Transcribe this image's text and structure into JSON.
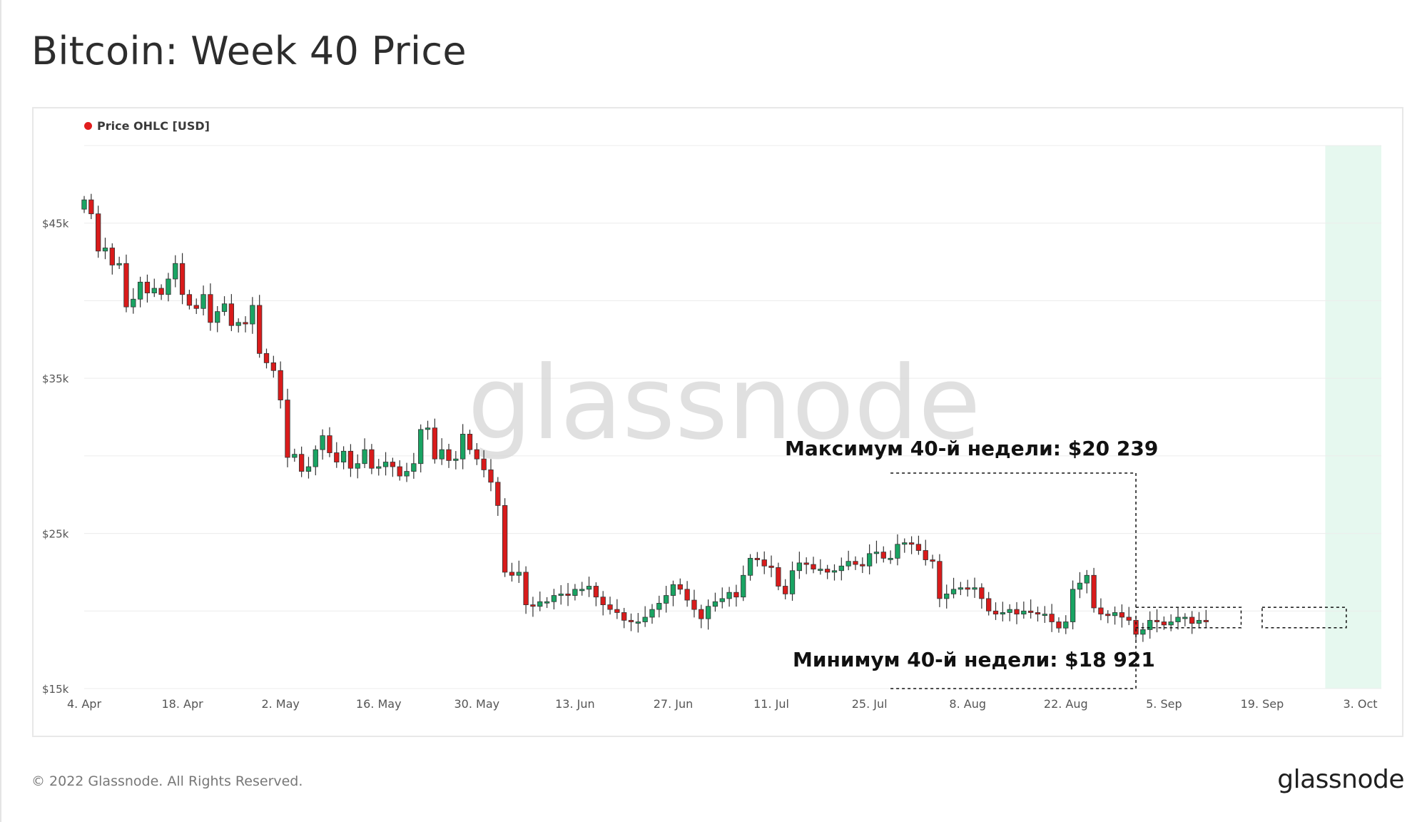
{
  "page": {
    "title": "Bitcoin: Week 40 Price",
    "copyright": "© 2022 Glassnode. All Rights Reserved.",
    "logo": "glassnode",
    "watermark": "glassnode"
  },
  "chart_data": {
    "type": "candlestick",
    "title": "Bitcoin: Week 40 Price",
    "legend": [
      {
        "name": "Price OHLC [USD]",
        "color": "#e11d1d"
      }
    ],
    "legend_position": "top-left",
    "grid": true,
    "xlabel": "",
    "ylabel": "",
    "ylim": [
      15000,
      50000
    ],
    "xlim": [
      "2022-04-04",
      "2022-10-06"
    ],
    "y_ticks": [
      {
        "value": 15000,
        "label": "$15k"
      },
      {
        "value": 25000,
        "label": "$25k"
      },
      {
        "value": 35000,
        "label": "$35k"
      },
      {
        "value": 45000,
        "label": "$45k"
      }
    ],
    "x_ticks": [
      {
        "date": "2022-04-04",
        "label": "4. Apr"
      },
      {
        "date": "2022-04-18",
        "label": "18. Apr"
      },
      {
        "date": "2022-05-02",
        "label": "2. May"
      },
      {
        "date": "2022-05-16",
        "label": "16. May"
      },
      {
        "date": "2022-05-30",
        "label": "30. May"
      },
      {
        "date": "2022-06-13",
        "label": "13. Jun"
      },
      {
        "date": "2022-06-27",
        "label": "27. Jun"
      },
      {
        "date": "2022-07-11",
        "label": "11. Jul"
      },
      {
        "date": "2022-07-25",
        "label": "25. Jul"
      },
      {
        "date": "2022-08-08",
        "label": "8. Aug"
      },
      {
        "date": "2022-08-22",
        "label": "22. Aug"
      },
      {
        "date": "2022-09-05",
        "label": "5. Sep"
      },
      {
        "date": "2022-09-19",
        "label": "19. Sep"
      },
      {
        "date": "2022-10-03",
        "label": "3. Oct"
      }
    ],
    "colors": {
      "up": "#19a463",
      "down": "#d91b1b",
      "highlight": "#e6f8ef",
      "grid": "#ececec"
    },
    "highlight_range": [
      "2022-09-28",
      "2022-10-06"
    ],
    "annotations": [
      {
        "text": "Максимум 40-й недели: $20 239",
        "value": 20239,
        "from": "2022-07-28",
        "to": "2022-09-01"
      },
      {
        "text": "Минимум 40-й недели: $18 921",
        "value": 18921,
        "from": "2022-07-28",
        "to": "2022-09-01"
      }
    ],
    "range_box_1": {
      "from": "2022-09-01",
      "to": "2022-09-16",
      "high": 20239,
      "low": 18921
    },
    "range_box_2": {
      "from": "2022-09-19",
      "to": "2022-10-01",
      "high": 20239,
      "low": 18921
    },
    "series": [
      {
        "name": "Price OHLC [USD]",
        "start_date": "2022-04-04",
        "close": [
          46500,
          45600,
          43200,
          43400,
          42300,
          42400,
          39600,
          40100,
          41200,
          40500,
          40800,
          40400,
          41400,
          42400,
          40400,
          39700,
          39500,
          40400,
          38600,
          39300,
          39800,
          38400,
          38600,
          38500,
          39700,
          36600,
          36000,
          35500,
          33600,
          29900,
          30100,
          29000,
          29300,
          30400,
          31300,
          30200,
          29600,
          30300,
          29200,
          29500,
          30400,
          29200,
          29300,
          29600,
          29300,
          28700,
          29000,
          29500,
          31700,
          31800,
          29800,
          30400,
          29700,
          29800,
          31400,
          30400,
          29800,
          29100,
          28300,
          26800,
          22500,
          22300,
          22500,
          20400,
          20300,
          20600,
          20600,
          21000,
          21100,
          21000,
          21400,
          21400,
          21600,
          20900,
          20400,
          20100,
          19900,
          19400,
          19300,
          19300,
          19600,
          20100,
          20500,
          21000,
          21700,
          21400,
          20700,
          20100,
          19500,
          20300,
          20600,
          20800,
          21200,
          20900,
          22300,
          23400,
          23300,
          22900,
          22800,
          21600,
          21100,
          22600,
          23100,
          23000,
          22700,
          22700,
          22500,
          22600,
          22900,
          23200,
          23000,
          22900,
          23700,
          23800,
          23400,
          23400,
          24300,
          24400,
          24300,
          23900,
          23300,
          23200,
          20800,
          21100,
          21400,
          21500,
          21400,
          21500,
          20800,
          20000,
          19800,
          19900,
          20100,
          19800,
          20000,
          19900,
          19800,
          19800,
          19300,
          18900,
          19300,
          21400,
          21800,
          22300,
          20200,
          19800,
          19700,
          19900,
          19600,
          19400,
          18500,
          18800,
          19400,
          19300,
          19100,
          19300,
          19600,
          19600,
          19200,
          19400,
          19300
        ]
      }
    ]
  }
}
